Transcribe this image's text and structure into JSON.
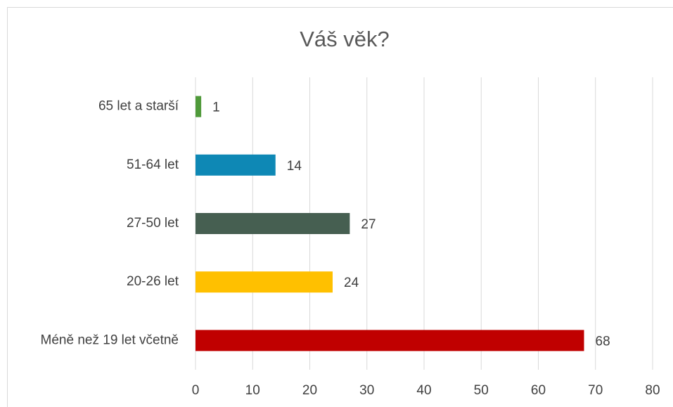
{
  "chart_data": {
    "type": "hbar",
    "title": "Váš věk?",
    "categories": [
      "65 let a starší",
      "51-64 let",
      "27-50 let",
      "20-26 let",
      "Méně než 19 let včetně"
    ],
    "values": [
      1,
      14,
      27,
      24,
      68
    ],
    "colors": [
      "#4f9a3a",
      "#0e88b5",
      "#465f51",
      "#ffc000",
      "#c00000"
    ],
    "xlim": [
      0,
      80
    ],
    "xticks": [
      0,
      10,
      20,
      30,
      40,
      50,
      60,
      70,
      80
    ],
    "grid": true
  }
}
